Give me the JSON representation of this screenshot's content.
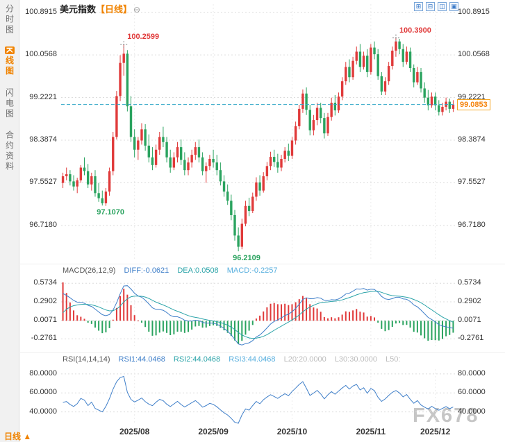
{
  "header": {
    "title": "美元指数",
    "period_tag": "【日线】",
    "collapse_icon": "⊖",
    "toolbar_icons": [
      {
        "name": "add-indicator-icon",
        "glyph": "⊞"
      },
      {
        "name": "remove-panel-icon",
        "glyph": "⊟"
      },
      {
        "name": "split-window-icon",
        "glyph": "◫"
      },
      {
        "name": "maximize-chart-icon",
        "glyph": "▣"
      }
    ]
  },
  "sidebar": {
    "items": [
      {
        "label": "分时图",
        "name": "sidebar-item-timeshare",
        "active": false
      },
      {
        "label": "K线图",
        "name": "sidebar-item-kline",
        "active": true
      },
      {
        "label": "闪电图",
        "name": "sidebar-item-lightning",
        "active": false
      },
      {
        "label": "合约资料",
        "name": "sidebar-item-contract-info",
        "active": false
      }
    ]
  },
  "footer": {
    "period_label": "日线",
    "arrow": "▲"
  },
  "watermark": "FX678",
  "colors": {
    "up": "#e03a3a",
    "down": "#2aa35f",
    "accent_orange": "#f08300",
    "price_line": "#2fa6c6",
    "diff": "#3f7fc9",
    "dea": "#2aa3a8",
    "grid": "#dcdcdc",
    "vgrid": "#ececec"
  },
  "chart_data": {
    "type": "candlestick",
    "title": "美元指数 日线",
    "y_ticks": [
      "100.8915",
      "100.0568",
      "99.2221",
      "98.3874",
      "97.5527",
      "96.7180"
    ],
    "y_range": [
      96.05,
      101.05
    ],
    "x_ticks": [
      {
        "label": "2025/08",
        "index": 20
      },
      {
        "label": "2025/09",
        "index": 42
      },
      {
        "label": "2025/10",
        "index": 64
      },
      {
        "label": "2025/11",
        "index": 86
      },
      {
        "label": "2025/12",
        "index": 104
      }
    ],
    "current_price": 99.0853,
    "current_price_label": "99.0853",
    "annotations": [
      {
        "index": 17,
        "price": 100.2599,
        "text": "100.2599",
        "type": "high"
      },
      {
        "index": 93,
        "price": 100.39,
        "text": "100.3900",
        "type": "high"
      },
      {
        "index": 11,
        "price": 97.107,
        "text": "97.1070",
        "type": "low"
      },
      {
        "index": 49,
        "price": 96.2109,
        "text": "96.2109",
        "type": "low"
      }
    ],
    "candles": [
      [
        97.55,
        97.75,
        97.45,
        97.68
      ],
      [
        97.68,
        97.85,
        97.6,
        97.72
      ],
      [
        97.72,
        97.8,
        97.5,
        97.58
      ],
      [
        97.58,
        97.7,
        97.4,
        97.48
      ],
      [
        97.48,
        97.65,
        97.35,
        97.6
      ],
      [
        97.6,
        97.9,
        97.55,
        97.85
      ],
      [
        97.85,
        98.05,
        97.7,
        97.78
      ],
      [
        97.78,
        97.92,
        97.45,
        97.52
      ],
      [
        97.52,
        97.75,
        97.4,
        97.68
      ],
      [
        97.68,
        97.8,
        97.28,
        97.35
      ],
      [
        97.35,
        97.55,
        97.18,
        97.25
      ],
      [
        97.25,
        97.4,
        97.107,
        97.15
      ],
      [
        97.15,
        97.45,
        97.1,
        97.38
      ],
      [
        97.38,
        97.85,
        97.3,
        97.78
      ],
      [
        97.78,
        98.55,
        97.7,
        98.45
      ],
      [
        98.45,
        99.35,
        98.4,
        99.25
      ],
      [
        99.25,
        100.05,
        99.15,
        99.9
      ],
      [
        99.9,
        100.2599,
        99.65,
        100.08
      ],
      [
        100.08,
        100.15,
        98.95,
        99.05
      ],
      [
        99.05,
        99.25,
        98.35,
        98.45
      ],
      [
        98.45,
        98.6,
        98.05,
        98.2
      ],
      [
        98.2,
        98.45,
        98.0,
        98.38
      ],
      [
        98.38,
        98.72,
        98.3,
        98.6
      ],
      [
        98.6,
        98.7,
        98.18,
        98.28
      ],
      [
        98.28,
        98.5,
        97.95,
        98.05
      ],
      [
        98.05,
        98.25,
        97.8,
        97.9
      ],
      [
        97.9,
        98.3,
        97.85,
        98.2
      ],
      [
        98.2,
        98.55,
        98.1,
        98.45
      ],
      [
        98.45,
        98.65,
        98.25,
        98.35
      ],
      [
        98.35,
        98.45,
        97.95,
        98.05
      ],
      [
        98.05,
        98.2,
        97.75,
        97.85
      ],
      [
        97.85,
        98.15,
        97.8,
        98.05
      ],
      [
        98.05,
        98.35,
        97.95,
        98.25
      ],
      [
        98.25,
        98.4,
        97.9,
        98.0
      ],
      [
        98.0,
        98.15,
        97.7,
        97.8
      ],
      [
        97.8,
        98.05,
        97.7,
        97.95
      ],
      [
        97.95,
        98.2,
        97.85,
        98.1
      ],
      [
        98.1,
        98.35,
        98.0,
        98.25
      ],
      [
        98.25,
        98.4,
        97.95,
        98.05
      ],
      [
        98.05,
        98.15,
        97.7,
        97.78
      ],
      [
        97.78,
        97.95,
        97.55,
        97.88
      ],
      [
        97.88,
        98.1,
        97.8,
        98.02
      ],
      [
        98.02,
        98.2,
        97.85,
        97.95
      ],
      [
        97.95,
        98.1,
        97.7,
        97.8
      ],
      [
        97.8,
        97.95,
        97.5,
        97.58
      ],
      [
        97.58,
        97.7,
        97.28,
        97.38
      ],
      [
        97.38,
        97.52,
        97.12,
        97.2
      ],
      [
        97.2,
        97.32,
        96.82,
        96.92
      ],
      [
        96.92,
        97.02,
        96.42,
        96.52
      ],
      [
        96.52,
        96.68,
        96.2109,
        96.3
      ],
      [
        96.3,
        96.85,
        96.25,
        96.75
      ],
      [
        96.75,
        97.2,
        96.7,
        97.1
      ],
      [
        97.1,
        97.26,
        96.9,
        97.0
      ],
      [
        97.0,
        97.36,
        96.96,
        97.28
      ],
      [
        97.28,
        97.66,
        97.2,
        97.56
      ],
      [
        97.56,
        97.7,
        97.3,
        97.4
      ],
      [
        97.4,
        97.76,
        97.36,
        97.68
      ],
      [
        97.68,
        97.96,
        97.6,
        97.88
      ],
      [
        97.88,
        98.16,
        97.8,
        98.06
      ],
      [
        98.06,
        98.2,
        97.86,
        97.96
      ],
      [
        97.96,
        98.12,
        97.75,
        97.85
      ],
      [
        97.85,
        98.1,
        97.78,
        98.02
      ],
      [
        98.02,
        98.25,
        97.95,
        98.18
      ],
      [
        98.18,
        98.32,
        97.98,
        98.08
      ],
      [
        98.08,
        98.45,
        98.02,
        98.38
      ],
      [
        98.38,
        98.75,
        98.3,
        98.66
      ],
      [
        98.66,
        99.08,
        98.6,
        99.0
      ],
      [
        99.0,
        99.38,
        98.92,
        99.3
      ],
      [
        99.3,
        99.42,
        98.88,
        98.98
      ],
      [
        98.98,
        99.08,
        98.48,
        98.58
      ],
      [
        98.58,
        98.88,
        98.48,
        98.78
      ],
      [
        98.78,
        99.12,
        98.68,
        99.02
      ],
      [
        99.02,
        99.12,
        98.72,
        98.82
      ],
      [
        98.82,
        98.92,
        98.42,
        98.52
      ],
      [
        98.52,
        98.92,
        98.47,
        98.84
      ],
      [
        98.84,
        99.22,
        98.77,
        99.12
      ],
      [
        99.12,
        99.27,
        98.87,
        98.97
      ],
      [
        98.97,
        99.32,
        98.92,
        99.24
      ],
      [
        99.24,
        99.62,
        99.17,
        99.54
      ],
      [
        99.54,
        99.92,
        99.47,
        99.82
      ],
      [
        99.82,
        99.97,
        99.52,
        99.62
      ],
      [
        99.62,
        100.02,
        99.57,
        99.94
      ],
      [
        99.94,
        100.22,
        99.87,
        100.12
      ],
      [
        100.12,
        100.27,
        99.72,
        99.82
      ],
      [
        99.82,
        100.12,
        99.77,
        100.04
      ],
      [
        100.04,
        100.17,
        99.62,
        99.72
      ],
      [
        99.72,
        100.27,
        99.67,
        100.2
      ],
      [
        100.2,
        100.32,
        99.97,
        100.07
      ],
      [
        100.07,
        100.17,
        99.57,
        99.64
      ],
      [
        99.64,
        99.72,
        99.27,
        99.34
      ],
      [
        99.34,
        99.62,
        99.27,
        99.54
      ],
      [
        99.54,
        99.92,
        99.47,
        99.84
      ],
      [
        99.84,
        100.22,
        99.77,
        100.14
      ],
      [
        100.14,
        100.39,
        100.02,
        100.32
      ],
      [
        100.32,
        100.37,
        100.07,
        100.17
      ],
      [
        100.17,
        100.27,
        99.82,
        99.92
      ],
      [
        99.92,
        100.22,
        99.87,
        100.12
      ],
      [
        100.12,
        100.2,
        99.72,
        99.8
      ],
      [
        99.8,
        99.87,
        99.42,
        99.52
      ],
      [
        99.52,
        99.82,
        99.47,
        99.72
      ],
      [
        99.72,
        99.8,
        99.32,
        99.4
      ],
      [
        99.4,
        99.52,
        99.12,
        99.22
      ],
      [
        99.22,
        99.37,
        98.97,
        99.07
      ],
      [
        99.07,
        99.32,
        99.02,
        99.24
      ],
      [
        99.24,
        99.32,
        98.97,
        99.07
      ],
      [
        99.07,
        99.17,
        98.87,
        98.94
      ],
      [
        98.94,
        99.12,
        98.87,
        99.04
      ],
      [
        99.04,
        99.22,
        98.97,
        99.14
      ],
      [
        99.14,
        99.2,
        98.92,
        99.0
      ],
      [
        99.0,
        99.17,
        98.94,
        99.0853
      ]
    ],
    "indicators": {
      "macd": {
        "header": {
          "name": "MACD(26,12,9)",
          "diff": "DIFF:-0.0621",
          "dea": "DEA:0.0508",
          "macd": "MACD:-0.2257"
        },
        "y_ticks": [
          "0.5734",
          "0.2902",
          "0.0071",
          "-0.2761"
        ],
        "y_range": [
          -0.4,
          0.64
        ]
      },
      "rsi": {
        "header": {
          "name": "RSI(14,14,14)",
          "rsi1": "RSI1:44.0468",
          "rsi2": "RSI2:44.0468",
          "rsi3": "RSI3:44.0468",
          "l20": "L20:20.0000",
          "l30": "L30:30.0000",
          "l50": "L50:"
        },
        "y_ticks": [
          "80.0000",
          "60.0000",
          "40.0000"
        ],
        "y_range": [
          28,
          85
        ]
      }
    }
  }
}
